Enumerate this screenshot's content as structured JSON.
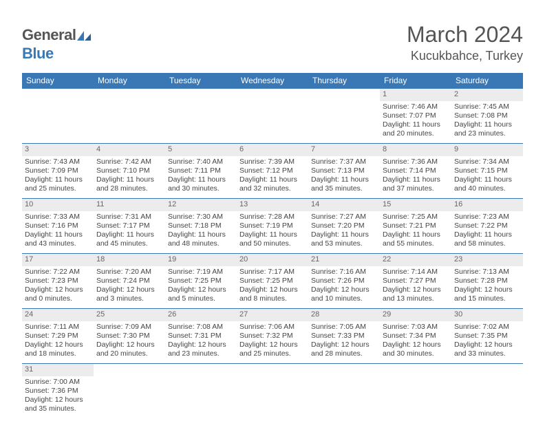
{
  "logo": {
    "general": "General",
    "blue": "Blue"
  },
  "title": "March 2024",
  "location": "Kucukbahce, Turkey",
  "colors": {
    "header_bg": "#3a78b5",
    "header_text": "#ffffff",
    "daynum_bg": "#ececec",
    "text": "#444444",
    "title_color": "#555555"
  },
  "weekdays": [
    "Sunday",
    "Monday",
    "Tuesday",
    "Wednesday",
    "Thursday",
    "Friday",
    "Saturday"
  ],
  "weeks": [
    [
      null,
      null,
      null,
      null,
      null,
      {
        "n": "1",
        "sr": "Sunrise: 7:46 AM",
        "ss": "Sunset: 7:07 PM",
        "d1": "Daylight: 11 hours",
        "d2": "and 20 minutes."
      },
      {
        "n": "2",
        "sr": "Sunrise: 7:45 AM",
        "ss": "Sunset: 7:08 PM",
        "d1": "Daylight: 11 hours",
        "d2": "and 23 minutes."
      }
    ],
    [
      {
        "n": "3",
        "sr": "Sunrise: 7:43 AM",
        "ss": "Sunset: 7:09 PM",
        "d1": "Daylight: 11 hours",
        "d2": "and 25 minutes."
      },
      {
        "n": "4",
        "sr": "Sunrise: 7:42 AM",
        "ss": "Sunset: 7:10 PM",
        "d1": "Daylight: 11 hours",
        "d2": "and 28 minutes."
      },
      {
        "n": "5",
        "sr": "Sunrise: 7:40 AM",
        "ss": "Sunset: 7:11 PM",
        "d1": "Daylight: 11 hours",
        "d2": "and 30 minutes."
      },
      {
        "n": "6",
        "sr": "Sunrise: 7:39 AM",
        "ss": "Sunset: 7:12 PM",
        "d1": "Daylight: 11 hours",
        "d2": "and 32 minutes."
      },
      {
        "n": "7",
        "sr": "Sunrise: 7:37 AM",
        "ss": "Sunset: 7:13 PM",
        "d1": "Daylight: 11 hours",
        "d2": "and 35 minutes."
      },
      {
        "n": "8",
        "sr": "Sunrise: 7:36 AM",
        "ss": "Sunset: 7:14 PM",
        "d1": "Daylight: 11 hours",
        "d2": "and 37 minutes."
      },
      {
        "n": "9",
        "sr": "Sunrise: 7:34 AM",
        "ss": "Sunset: 7:15 PM",
        "d1": "Daylight: 11 hours",
        "d2": "and 40 minutes."
      }
    ],
    [
      {
        "n": "10",
        "sr": "Sunrise: 7:33 AM",
        "ss": "Sunset: 7:16 PM",
        "d1": "Daylight: 11 hours",
        "d2": "and 43 minutes."
      },
      {
        "n": "11",
        "sr": "Sunrise: 7:31 AM",
        "ss": "Sunset: 7:17 PM",
        "d1": "Daylight: 11 hours",
        "d2": "and 45 minutes."
      },
      {
        "n": "12",
        "sr": "Sunrise: 7:30 AM",
        "ss": "Sunset: 7:18 PM",
        "d1": "Daylight: 11 hours",
        "d2": "and 48 minutes."
      },
      {
        "n": "13",
        "sr": "Sunrise: 7:28 AM",
        "ss": "Sunset: 7:19 PM",
        "d1": "Daylight: 11 hours",
        "d2": "and 50 minutes."
      },
      {
        "n": "14",
        "sr": "Sunrise: 7:27 AM",
        "ss": "Sunset: 7:20 PM",
        "d1": "Daylight: 11 hours",
        "d2": "and 53 minutes."
      },
      {
        "n": "15",
        "sr": "Sunrise: 7:25 AM",
        "ss": "Sunset: 7:21 PM",
        "d1": "Daylight: 11 hours",
        "d2": "and 55 minutes."
      },
      {
        "n": "16",
        "sr": "Sunrise: 7:23 AM",
        "ss": "Sunset: 7:22 PM",
        "d1": "Daylight: 11 hours",
        "d2": "and 58 minutes."
      }
    ],
    [
      {
        "n": "17",
        "sr": "Sunrise: 7:22 AM",
        "ss": "Sunset: 7:23 PM",
        "d1": "Daylight: 12 hours",
        "d2": "and 0 minutes."
      },
      {
        "n": "18",
        "sr": "Sunrise: 7:20 AM",
        "ss": "Sunset: 7:24 PM",
        "d1": "Daylight: 12 hours",
        "d2": "and 3 minutes."
      },
      {
        "n": "19",
        "sr": "Sunrise: 7:19 AM",
        "ss": "Sunset: 7:25 PM",
        "d1": "Daylight: 12 hours",
        "d2": "and 5 minutes."
      },
      {
        "n": "20",
        "sr": "Sunrise: 7:17 AM",
        "ss": "Sunset: 7:25 PM",
        "d1": "Daylight: 12 hours",
        "d2": "and 8 minutes."
      },
      {
        "n": "21",
        "sr": "Sunrise: 7:16 AM",
        "ss": "Sunset: 7:26 PM",
        "d1": "Daylight: 12 hours",
        "d2": "and 10 minutes."
      },
      {
        "n": "22",
        "sr": "Sunrise: 7:14 AM",
        "ss": "Sunset: 7:27 PM",
        "d1": "Daylight: 12 hours",
        "d2": "and 13 minutes."
      },
      {
        "n": "23",
        "sr": "Sunrise: 7:13 AM",
        "ss": "Sunset: 7:28 PM",
        "d1": "Daylight: 12 hours",
        "d2": "and 15 minutes."
      }
    ],
    [
      {
        "n": "24",
        "sr": "Sunrise: 7:11 AM",
        "ss": "Sunset: 7:29 PM",
        "d1": "Daylight: 12 hours",
        "d2": "and 18 minutes."
      },
      {
        "n": "25",
        "sr": "Sunrise: 7:09 AM",
        "ss": "Sunset: 7:30 PM",
        "d1": "Daylight: 12 hours",
        "d2": "and 20 minutes."
      },
      {
        "n": "26",
        "sr": "Sunrise: 7:08 AM",
        "ss": "Sunset: 7:31 PM",
        "d1": "Daylight: 12 hours",
        "d2": "and 23 minutes."
      },
      {
        "n": "27",
        "sr": "Sunrise: 7:06 AM",
        "ss": "Sunset: 7:32 PM",
        "d1": "Daylight: 12 hours",
        "d2": "and 25 minutes."
      },
      {
        "n": "28",
        "sr": "Sunrise: 7:05 AM",
        "ss": "Sunset: 7:33 PM",
        "d1": "Daylight: 12 hours",
        "d2": "and 28 minutes."
      },
      {
        "n": "29",
        "sr": "Sunrise: 7:03 AM",
        "ss": "Sunset: 7:34 PM",
        "d1": "Daylight: 12 hours",
        "d2": "and 30 minutes."
      },
      {
        "n": "30",
        "sr": "Sunrise: 7:02 AM",
        "ss": "Sunset: 7:35 PM",
        "d1": "Daylight: 12 hours",
        "d2": "and 33 minutes."
      }
    ],
    [
      {
        "n": "31",
        "sr": "Sunrise: 7:00 AM",
        "ss": "Sunset: 7:36 PM",
        "d1": "Daylight: 12 hours",
        "d2": "and 35 minutes."
      },
      null,
      null,
      null,
      null,
      null,
      null
    ]
  ]
}
